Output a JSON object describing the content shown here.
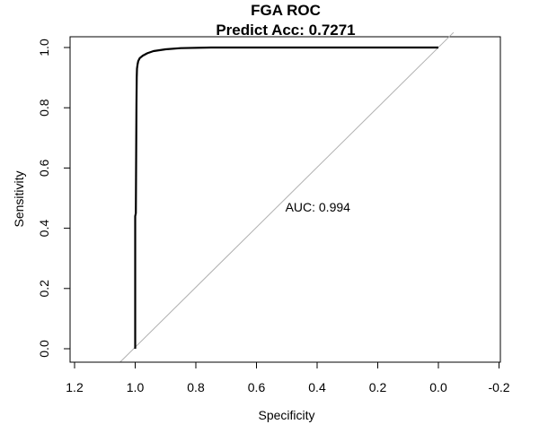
{
  "chart_data": {
    "type": "line",
    "title": "FGA ROC",
    "subtitle": "Predict Acc: 0.7271",
    "xlabel": "Specificity",
    "ylabel": "Sensitivity",
    "xlim": [
      1.2,
      -0.2
    ],
    "ylim": [
      0,
      1
    ],
    "x_reversed": true,
    "x_ticks": [
      1.2,
      1.0,
      0.8,
      0.6,
      0.4,
      0.2,
      0.0,
      -0.2
    ],
    "x_tick_labels": [
      "1.2",
      "1.0",
      "0.8",
      "0.6",
      "0.4",
      "0.2",
      "0.0",
      "-0.2"
    ],
    "y_ticks": [
      0.0,
      0.2,
      0.4,
      0.6,
      0.8,
      1.0
    ],
    "y_tick_labels": [
      "0.0",
      "0.2",
      "0.4",
      "0.6",
      "0.8",
      "1.0"
    ],
    "grid": false,
    "annotation": "AUC: 0.994",
    "reference_line": {
      "x": [
        1.05,
        -0.05
      ],
      "y": [
        -0.05,
        1.05
      ],
      "color": "#b0b0b0"
    },
    "series": [
      {
        "color": "#000000",
        "x": [
          1.0,
          1.0,
          0.998,
          0.996,
          0.995,
          0.994,
          0.992,
          0.99,
          0.985,
          0.975,
          0.96,
          0.94,
          0.9,
          0.85,
          0.75,
          0.6,
          0.4,
          0.2,
          0.0
        ],
        "y": [
          0.0,
          0.44,
          0.45,
          0.81,
          0.9,
          0.93,
          0.945,
          0.955,
          0.965,
          0.973,
          0.981,
          0.988,
          0.994,
          0.998,
          1.0,
          1.0,
          1.0,
          1.0,
          1.0
        ]
      }
    ]
  }
}
